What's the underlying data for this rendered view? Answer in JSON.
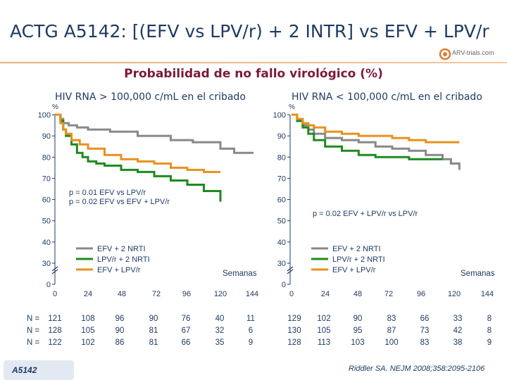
{
  "title": "ACTG A5142: [(EFV vs LPV/r) + 2 INTR] vs EFV + LPV/r",
  "logo_text": "ARV-trials.com",
  "subtitle": "Probabilidad de no fallo virológico (%)",
  "colors": {
    "efv_2nrti": "#888888",
    "lpvr_2nrti": "#1e8a1e",
    "efv_lpvr": "#e8901e",
    "text": "#1f3b63"
  },
  "chart_data": [
    {
      "type": "line",
      "title": "HIV RNA > 100,000 c/mL en el cribado",
      "ylabel": "%",
      "xlabel": "Semanas",
      "ylim": [
        0,
        100
      ],
      "xlim": [
        0,
        144
      ],
      "yticks": [
        "100",
        "90",
        "80",
        "70",
        "60",
        "50",
        "40",
        "30",
        "0"
      ],
      "xticks": [
        "0",
        "24",
        "48",
        "72",
        "96",
        "120",
        "144"
      ],
      "annotation_lines": [
        "p = 0.01 EFV vs LPV/r",
        "p = 0.02 EFV vs EFV + LPV/r"
      ],
      "legend": [
        "EFV + 2 NRTI",
        "LPV/r + 2 NRTI",
        "EFV + LPV/r"
      ],
      "series": [
        {
          "name": "EFV + 2 NRTI",
          "x": [
            0,
            4,
            6,
            10,
            16,
            24,
            40,
            60,
            84,
            100,
            120,
            130,
            144
          ],
          "y": [
            100,
            98,
            96,
            95,
            94,
            93,
            92,
            90,
            88,
            87,
            84,
            82,
            82
          ]
        },
        {
          "name": "LPV/r + 2 NRTI",
          "x": [
            0,
            4,
            6,
            8,
            12,
            16,
            20,
            24,
            30,
            36,
            48,
            60,
            72,
            84,
            96,
            108,
            114,
            120
          ],
          "y": [
            100,
            97,
            93,
            90,
            86,
            82,
            80,
            78,
            77,
            76,
            74,
            73,
            71,
            69,
            67,
            64,
            64,
            59
          ]
        },
        {
          "name": "EFV + LPV/r",
          "x": [
            0,
            4,
            6,
            8,
            12,
            18,
            24,
            36,
            48,
            60,
            72,
            84,
            96,
            108,
            120
          ],
          "y": [
            100,
            96,
            93,
            91,
            88,
            86,
            84,
            81,
            79,
            78,
            77,
            75,
            74,
            73,
            73
          ]
        }
      ],
      "n_at_risk": [
        {
          "label": "N =",
          "values": [
            "121",
            "108",
            "96",
            "90",
            "76",
            "40",
            "11"
          ]
        },
        {
          "label": "N =",
          "values": [
            "128",
            "105",
            "90",
            "81",
            "67",
            "32",
            "6"
          ]
        },
        {
          "label": "N =",
          "values": [
            "122",
            "102",
            "86",
            "81",
            "66",
            "35",
            "9"
          ]
        }
      ]
    },
    {
      "type": "line",
      "title": "HIV RNA < 100,000 c/mL en el cribado",
      "ylabel": "%",
      "xlabel": "Semanas",
      "ylim": [
        0,
        100
      ],
      "xlim": [
        0,
        144
      ],
      "yticks": [
        "100",
        "90",
        "80",
        "70",
        "60",
        "50",
        "40",
        "30",
        "0"
      ],
      "xticks": [
        "0",
        "24",
        "48",
        "72",
        "96",
        "120",
        "144"
      ],
      "annotation_lines": [
        "p = 0.02 EFV + LPV/r vs LPV/r"
      ],
      "legend": [
        "EFV + 2 NRTI",
        "LPV/r + 2 NRTI",
        "EFV + LPV/r"
      ],
      "series": [
        {
          "name": "EFV + 2 NRTI",
          "x": [
            0,
            4,
            8,
            12,
            16,
            24,
            36,
            48,
            60,
            72,
            84,
            96,
            108,
            114,
            120
          ],
          "y": [
            100,
            97,
            95,
            93,
            91,
            89,
            88,
            87,
            85,
            84,
            83,
            81,
            79,
            77,
            74
          ]
        },
        {
          "name": "LPV/r + 2 NRTI",
          "x": [
            0,
            4,
            8,
            12,
            16,
            24,
            36,
            48,
            60,
            72,
            84,
            96,
            108
          ],
          "y": [
            100,
            97,
            94,
            91,
            88,
            85,
            83,
            81,
            80,
            80,
            79,
            79,
            79
          ]
        },
        {
          "name": "EFV + LPV/r",
          "x": [
            0,
            4,
            8,
            12,
            16,
            24,
            36,
            48,
            60,
            72,
            84,
            96,
            108,
            120
          ],
          "y": [
            100,
            98,
            96,
            95,
            94,
            92,
            91,
            90,
            90,
            89,
            88,
            87,
            87,
            87
          ]
        }
      ],
      "n_at_risk": [
        {
          "values": [
            "129",
            "102",
            "90",
            "83",
            "66",
            "33",
            "8"
          ]
        },
        {
          "values": [
            "130",
            "105",
            "95",
            "87",
            "73",
            "42",
            "8"
          ]
        },
        {
          "values": [
            "128",
            "113",
            "103",
            "100",
            "83",
            "38",
            "9"
          ]
        }
      ]
    }
  ],
  "badge": "A5142",
  "reference": "Riddler SA. NEJM 2008;358:2095-2106"
}
